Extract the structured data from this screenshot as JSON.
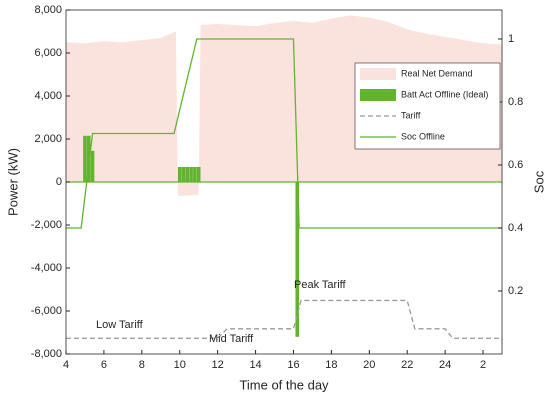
{
  "chart_data": {
    "type": "combo",
    "xlabel": "Time of the day",
    "ylabel": "Power (kW)",
    "y2label": "Soc",
    "xlim": [
      4,
      27
    ],
    "ylim": [
      -8000,
      8000
    ],
    "y2lim": [
      0,
      1.092
    ],
    "xticks": [
      4,
      6,
      8,
      10,
      12,
      14,
      16,
      18,
      20,
      22,
      24,
      {
        "value": 26,
        "label": "2"
      }
    ],
    "yticks": [
      {
        "value": -8000,
        "label": "-8,000"
      },
      {
        "value": -6000,
        "label": "-6,000"
      },
      {
        "value": -4000,
        "label": "-4,000"
      },
      {
        "value": -2000,
        "label": "-2,000"
      },
      0,
      {
        "value": 2000,
        "label": "2,000"
      },
      {
        "value": 4000,
        "label": "4,000"
      },
      {
        "value": 6000,
        "label": "6,000"
      },
      {
        "value": 8000,
        "label": "8,000"
      }
    ],
    "y2ticks": [
      0.2,
      0.4,
      0.6,
      0.8,
      1
    ],
    "legend": "upper right",
    "series": [
      {
        "name": "Real Net Demand",
        "type": "area",
        "color": "#fbe3dd",
        "x": [
          4,
          5,
          6,
          7,
          8,
          9,
          9.8,
          9.9,
          11.0,
          11.1,
          12,
          13,
          14,
          15,
          16,
          17,
          18,
          19,
          20,
          21,
          22,
          23,
          24,
          25,
          26,
          27
        ],
        "values": [
          6500,
          6450,
          6550,
          6500,
          6600,
          6700,
          7000,
          -650,
          -600,
          7300,
          7350,
          7300,
          7250,
          7400,
          7500,
          7400,
          7600,
          7750,
          7650,
          7450,
          7100,
          6900,
          6750,
          6600,
          6450,
          6400
        ]
      },
      {
        "name": "Batt Act Offline (Ideal)",
        "type": "bar",
        "color": "#62b32f",
        "x": [
          5.0,
          5.2,
          5.4,
          10.0,
          10.2,
          10.4,
          10.6,
          10.8,
          11.0,
          16.2
        ],
        "values": [
          2150,
          2150,
          1450,
          700,
          700,
          700,
          700,
          700,
          700,
          -7200
        ]
      },
      {
        "name": "Tariff",
        "type": "line",
        "dash": true,
        "axis": "y2",
        "color": "#999999",
        "x": [
          4,
          12,
          12.5,
          16,
          16.4,
          22,
          22.4,
          24,
          24.4,
          27
        ],
        "values": [
          0.05,
          0.05,
          0.08,
          0.08,
          0.17,
          0.17,
          0.08,
          0.08,
          0.05,
          0.05
        ]
      },
      {
        "name": "Soc Offline",
        "type": "line",
        "axis": "y2",
        "color": "#62b32f",
        "x": [
          4,
          4.8,
          5.4,
          9.7,
          10.9,
          16.0,
          16.3,
          27
        ],
        "values": [
          0.4,
          0.4,
          0.7,
          0.7,
          1,
          1,
          0.4,
          0.4
        ]
      }
    ],
    "annotations": [
      {
        "text": "Low Tariff"
      },
      {
        "text": "Mid Tariff"
      },
      {
        "text": "Peak Tariff"
      }
    ]
  }
}
